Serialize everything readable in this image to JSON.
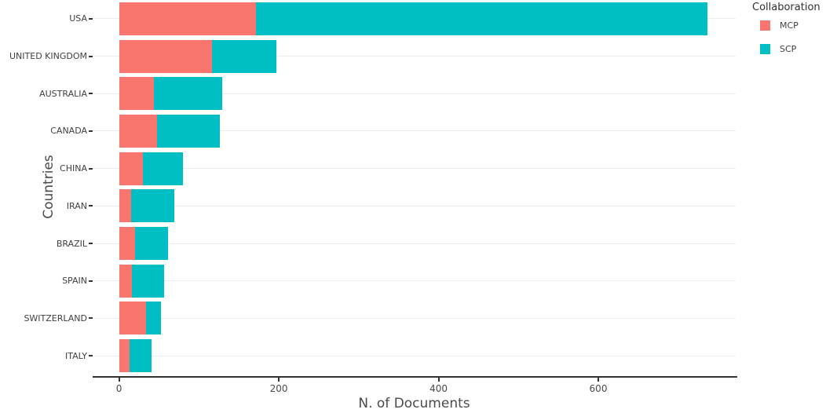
{
  "chart_data": {
    "type": "bar",
    "orientation": "horizontal",
    "stacked": true,
    "title": "",
    "xlabel": "N. of Documents",
    "ylabel": "Countries",
    "categories": [
      "USA",
      "UNITED KINGDOM",
      "AUSTRALIA",
      "CANADA",
      "CHINA",
      "IRAN",
      "BRAZIL",
      "SPAIN",
      "SWITZERLAND",
      "ITALY"
    ],
    "series": [
      {
        "name": "MCP",
        "color": "#f8766d",
        "values": [
          171,
          116,
          44,
          48,
          30,
          15,
          20,
          16,
          34,
          13
        ]
      },
      {
        "name": "SCP",
        "color": "#00bfc4",
        "values": [
          566,
          81,
          85,
          78,
          50,
          54,
          41,
          40,
          19,
          28
        ]
      }
    ],
    "totals": [
      737,
      197,
      129,
      126,
      80,
      69,
      61,
      56,
      53,
      41
    ],
    "xticks": [
      0,
      200,
      400,
      600
    ],
    "xlim": [
      -33,
      772
    ],
    "grid": "horizontal-only",
    "legend": {
      "title": "Collaboration",
      "position": "top-right"
    }
  },
  "colors": {
    "mcp": "#f8766d",
    "scp": "#00bfc4",
    "gridline": "#ececec",
    "axis_line": "#333333",
    "tick_text": "#4a4a4a",
    "label_text": "#3f3f3f"
  }
}
